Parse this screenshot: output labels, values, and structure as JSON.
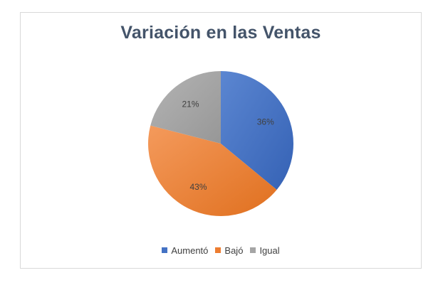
{
  "chart_data": {
    "type": "pie",
    "title": "Variación en las Ventas",
    "categories": [
      "Aumentó",
      "Bajó",
      "Igual"
    ],
    "values": [
      36,
      43,
      21
    ],
    "data_labels": [
      "36%",
      "43%",
      "21%"
    ],
    "colors": [
      "#4472c4",
      "#ed7d31",
      "#a5a5a5"
    ],
    "legend_position": "bottom",
    "start_angle_deg": 0,
    "direction": "clockwise"
  }
}
